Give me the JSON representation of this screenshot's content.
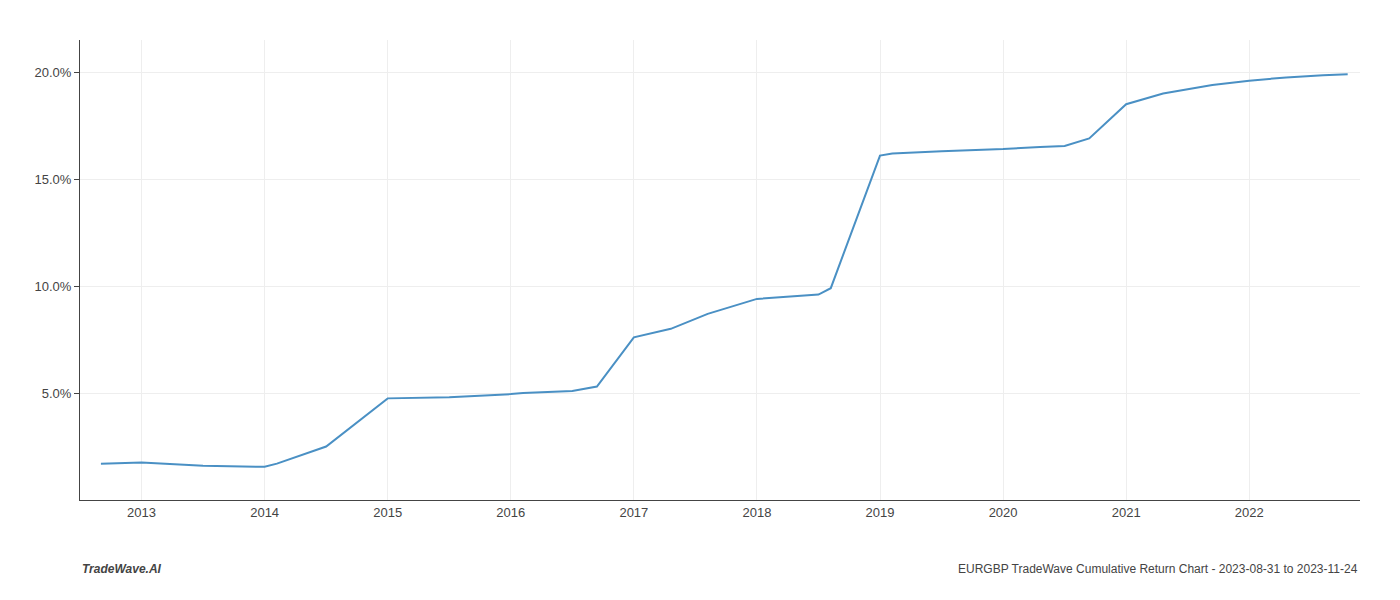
{
  "chart_data": {
    "type": "line",
    "x": [
      2012.67,
      2013.0,
      2013.5,
      2014.0,
      2014.1,
      2014.5,
      2015.0,
      2015.5,
      2016.0,
      2016.1,
      2016.5,
      2016.7,
      2017.0,
      2017.3,
      2017.6,
      2018.0,
      2018.5,
      2018.6,
      2019.0,
      2019.1,
      2019.5,
      2020.0,
      2020.3,
      2020.5,
      2020.7,
      2021.0,
      2021.3,
      2021.5,
      2021.7,
      2022.0,
      2022.3,
      2022.6,
      2022.8
    ],
    "values": [
      1.7,
      1.75,
      1.6,
      1.55,
      1.7,
      2.5,
      4.75,
      4.8,
      4.95,
      5.0,
      5.1,
      5.3,
      7.6,
      8.0,
      8.7,
      9.4,
      9.6,
      9.9,
      16.1,
      16.2,
      16.3,
      16.4,
      16.5,
      16.55,
      16.9,
      18.5,
      19.0,
      19.2,
      19.4,
      19.6,
      19.75,
      19.85,
      19.9
    ],
    "color": "#4a90c4",
    "xlim": [
      2012.5,
      2022.9
    ],
    "xticks": [
      2013,
      2014,
      2015,
      2016,
      2017,
      2018,
      2019,
      2020,
      2021,
      2022
    ],
    "ylim": [
      0.0,
      21.5
    ],
    "yticks": [
      {
        "value": 5.0,
        "label": "5.0%"
      },
      {
        "value": 10.0,
        "label": "10.0%"
      },
      {
        "value": 15.0,
        "label": "15.0%"
      },
      {
        "value": 20.0,
        "label": "20.0%"
      }
    ],
    "grid": true,
    "annotations": [
      "TradeWave.AI",
      "EURGBP TradeWave Cumulative Return Chart - 2023-08-31 to 2023-11-24"
    ]
  }
}
